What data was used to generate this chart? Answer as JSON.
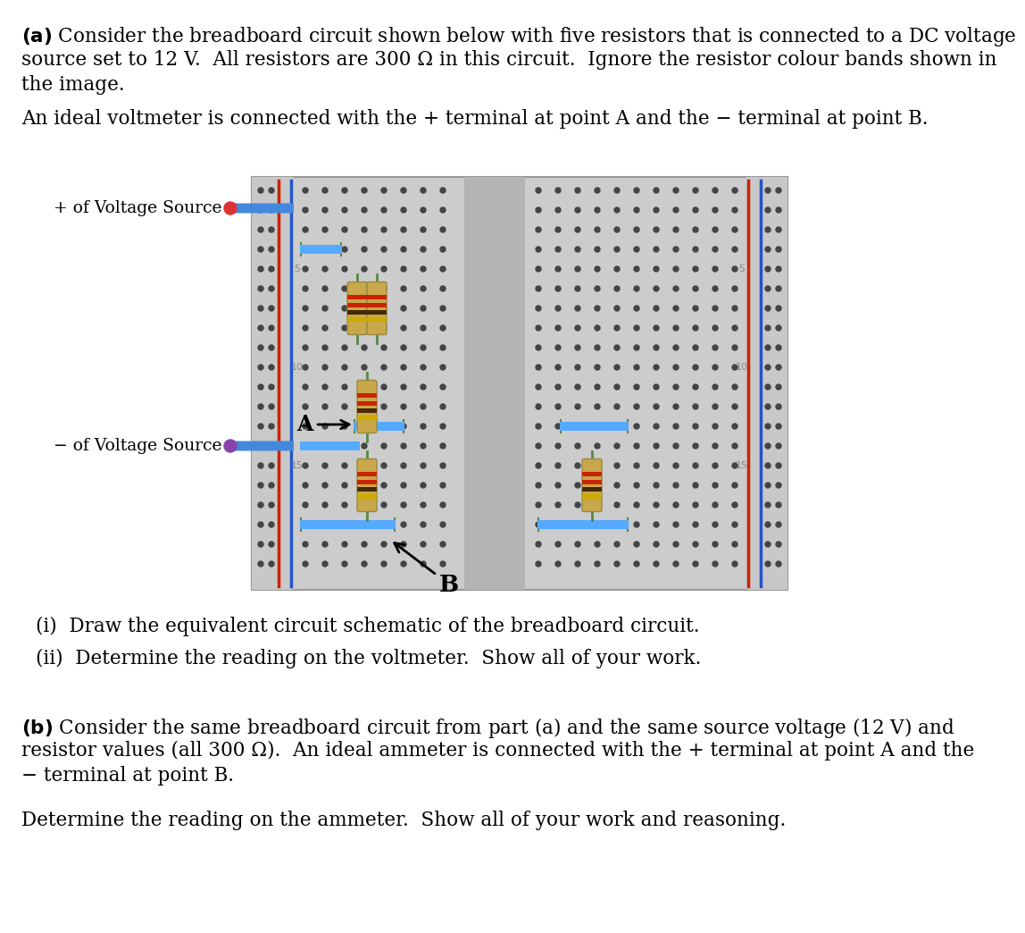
{
  "page_width": 8.99,
  "page_height": 10.24,
  "bg": "#ffffff",
  "bb_bg": "#cccccc",
  "bb_border": "#aaaaaa",
  "center_strip": "#b0b0b0",
  "rail_red": "#cc2200",
  "rail_blue": "#2255cc",
  "wire_color": "#4488dd",
  "wire_color2": "#55aaff",
  "dot_dark": "#444444",
  "res_body": "#c8a84a",
  "res_band1": "#cc2200",
  "res_band2": "#cc2200",
  "res_band3": "#4a2800",
  "res_band4": "#ccaa00",
  "res_lead": "#558844",
  "arrow_color": "#000000",
  "text_color": "#000000",
  "label_plus": "+ of Voltage Source",
  "label_minus": "− of Voltage Source",
  "para_a_L1": "(a) Consider the breadboard circuit shown below with five resistors that is connected to a DC voltage",
  "para_a_L2": "source set to 12 V.  All resistors are 300 Ω in this circuit.  Ignore the resistor colour bands shown in",
  "para_a_L3": "the image.",
  "para_vm": "An ideal voltmeter is connected with the + terminal at point A and the − terminal at point B.",
  "sub_i": "(i)  Draw the equivalent circuit schematic of the breadboard circuit.",
  "sub_ii": "(ii)  Determine the reading on the voltmeter.  Show all of your work.",
  "para_b_L1": "(b) Consider the same breadboard circuit from part (a) and the same source voltage (12 V) and",
  "para_b_L2": "resistor values (all 300 Ω).  An ideal ammeter is connected with the + terminal at point A and the",
  "para_b_L3": "− terminal at point B.",
  "para_amm": "Determine the reading on the ammeter.  Show all of your work and reasoning."
}
